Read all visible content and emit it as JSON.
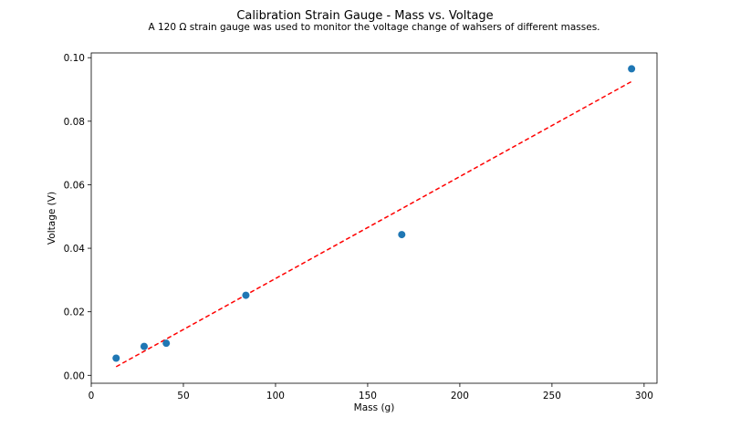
{
  "chart_data": {
    "type": "scatter",
    "title": "Calibration Strain Gauge - Mass vs. Voltage",
    "subtitle": "A 120 Ω strain gauge was used to monitor the voltage change of wahsers of different masses.",
    "xlabel": "Mass (g)",
    "ylabel": "Voltage (V)",
    "xlim": [
      0,
      307
    ],
    "ylim": [
      -0.0025,
      0.1015
    ],
    "xticks": [
      0,
      50,
      100,
      150,
      200,
      250,
      300
    ],
    "xtick_labels": [
      "0",
      "50",
      "100",
      "150",
      "200",
      "250",
      "300"
    ],
    "yticks": [
      0.0,
      0.02,
      0.04,
      0.06,
      0.08,
      0.1
    ],
    "ytick_labels": [
      "0.00",
      "0.02",
      "0.04",
      "0.06",
      "0.08",
      "0.10"
    ],
    "grid": false,
    "series": [
      {
        "kind": "scatter",
        "color": "#1f77b4",
        "x": [
          13.5,
          28.7,
          40.7,
          83.9,
          168.5,
          293.2
        ],
        "y": [
          0.0054,
          0.0091,
          0.0101,
          0.0252,
          0.0443,
          0.0965
        ]
      },
      {
        "kind": "fit-line",
        "style": "dashed",
        "color": "#ff0000",
        "x": [
          13.5,
          293.2
        ],
        "y": [
          0.0027,
          0.0925
        ]
      }
    ]
  }
}
